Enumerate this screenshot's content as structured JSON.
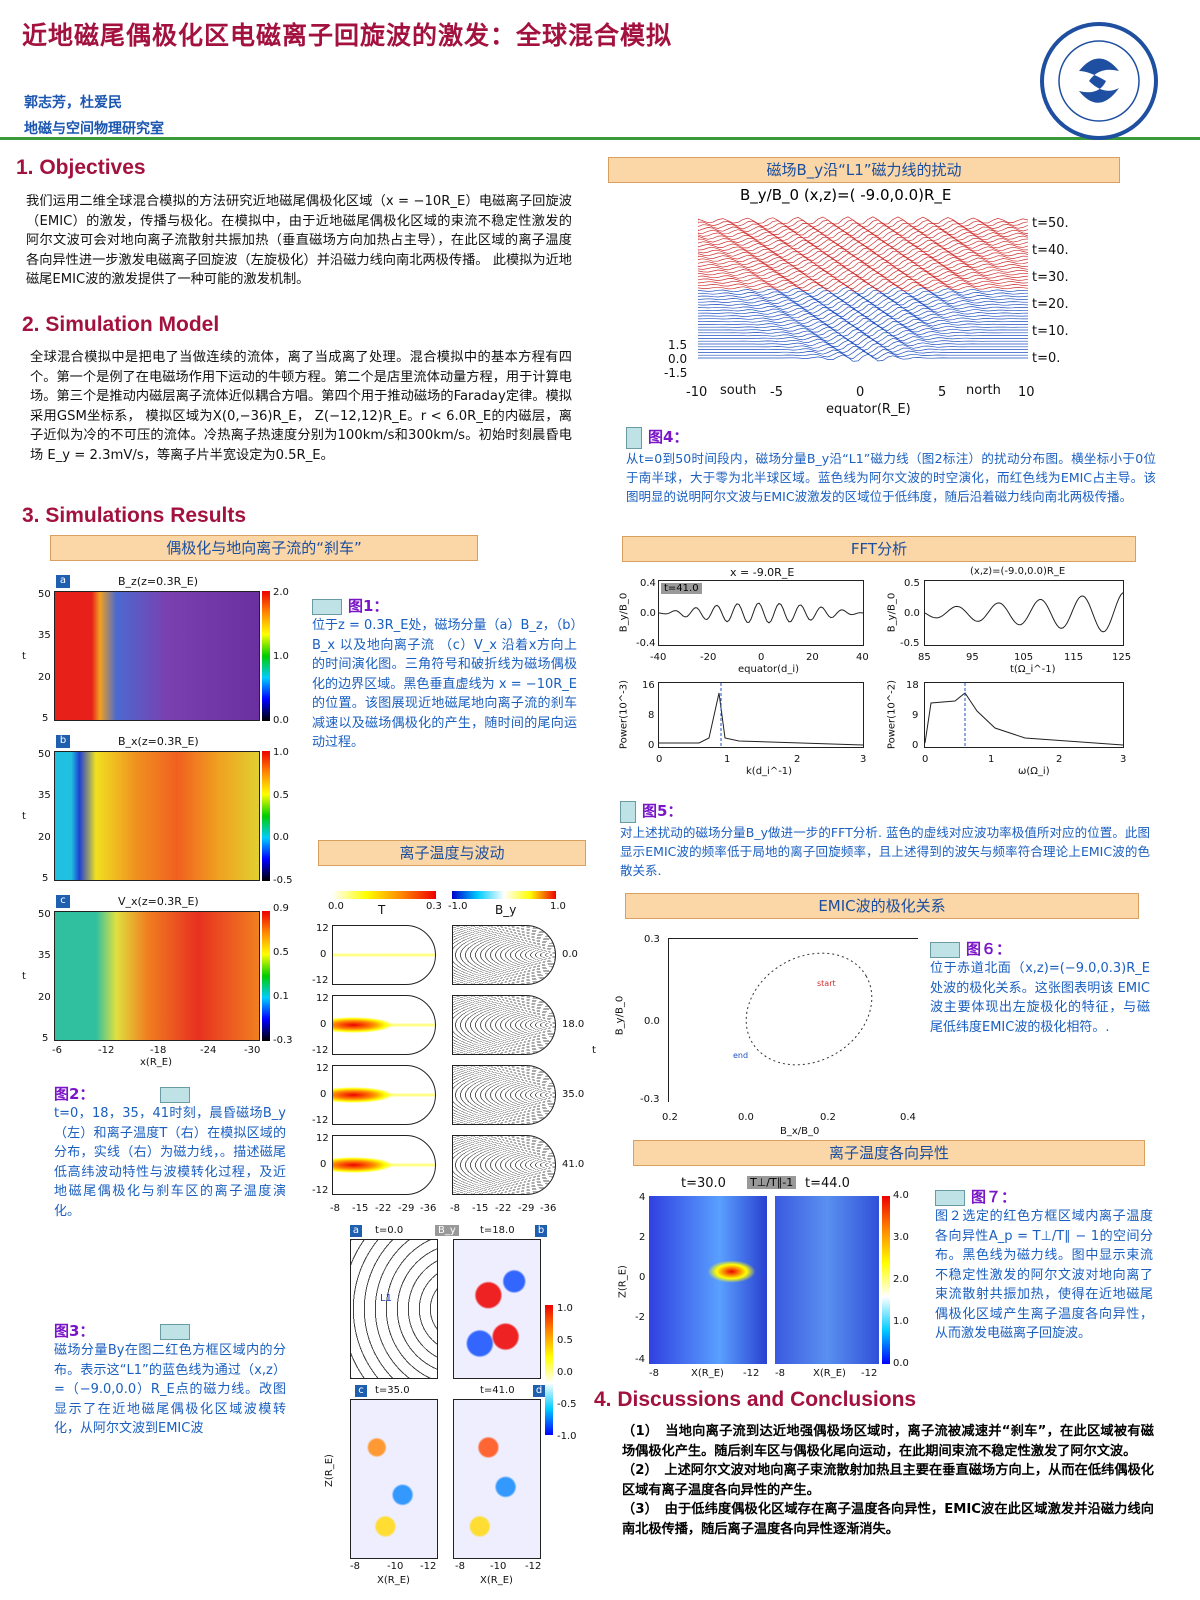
{
  "header": {
    "title": "近地磁尾偶极化区电磁离子回旋波的激发：全球混合模拟",
    "authors": "郭志芳，杜爱民",
    "institute": "地磁与空间物理研究室",
    "logo_text": "中国科学院地质与地球物理研究所 INSTITUTE OF GEOLOGY AND GEOPHYSICS CAS"
  },
  "colors": {
    "title": "#a3123f",
    "caption": "#1a5fc0",
    "band": "#fbd6a6",
    "rule": "#3a9a3a"
  },
  "objectives": {
    "heading": "1. Objectives",
    "text": "我们运用二维全球混合模拟的方法研究近地磁尾偶极化区域（x = −10R_E）电磁离子回旋波（EMIC）的激发，传播与极化。在模拟中，由于近地磁尾偶极化区域的束流不稳定性激发的阿尔文波可会对地向离子流散射共振加热（垂直磁场方向加热占主导），在此区域的离子温度各向异性进一步激发电磁离子回旋波（左旋极化）并沿磁力线向南北两极传播。 此模拟为近地磁尾EMIC波的激发提供了一种可能的激发机制。"
  },
  "model": {
    "heading": "2. Simulation Model",
    "text": "全球混合模拟中是把电了当做连续的流体，离了当成离了处理。混合模拟中的基本方程有四个。第一个是例了在电磁场作用下运动的牛顿方程。第二个是店里流体动量方程，用于计算电场。第三个是推动内磁层离子流体近似耦合方唱。第四个用于推动磁场的Faraday定律。模拟采用GSM坐标系， 模拟区域为X(0,−36)R_E， Z(−12,12)R_E。r < 6.0R_E的内磁层，离子近似为冷的不可压的流体。冷热离子热速度分别为100km/s和300km/s。初始时刻晨昏电场 E_y = 2.3mV/s，等离子片半宽设定为0.5R_E。"
  },
  "results": {
    "heading": "3. Simulations Results",
    "band1": "偶极化与地向离子流的“刹车”",
    "band2": "离子温度与波动"
  },
  "fig1": {
    "panels": [
      {
        "tag": "a",
        "title": "B_z(z=0.3R_E)",
        "cb": [
          "2.0",
          "1.0",
          "0.0"
        ]
      },
      {
        "tag": "b",
        "title": "B_x(z=0.3R_E)",
        "cb": [
          "1.0",
          "0.5",
          "0.0",
          "-0.5"
        ]
      },
      {
        "tag": "c",
        "title": "V_x(z=0.3R_E)",
        "cb": [
          "0.9",
          "0.5",
          "0.1",
          "-0.3"
        ]
      }
    ],
    "yticks": [
      "50",
      "35",
      "20",
      "5"
    ],
    "ylabel": "t",
    "xticks": [
      "-6",
      "-12",
      "-18",
      "-24",
      "-30"
    ],
    "xlabel": "x(R_E)",
    "caption_head": "图1：",
    "caption": "位于z = 0.3R_E处，磁场分量（a）B_z，（b）B_x 以及地向离子流 （c）V_x 沿着x方向上的时间演化图。三角符号和破折线为磁场偶极化的边界区域。黑色垂直虚线为 x = −10R_E 的位置。该图展现近地磁尾地向离子流的刹车减速以及磁场偶极化的产生，随时间的尾向运动过程。"
  },
  "fig2": {
    "caption_head": "图2：",
    "caption": "t=0，18，35，41时刻，晨昏磁场B_y（左）和离子温度T（右）在模拟区域的分布，实线（右）为磁力线，。描述磁尾低高纬波动特性与波模转化过程，及近地磁尾偶极化与刹车区的离子温度演化。",
    "cbT": {
      "label": "T",
      "min": "0.0",
      "max": "0.3"
    },
    "cbBy": {
      "label": "B_y",
      "min": "-1.0",
      "max": "1.0"
    },
    "times": [
      "0.0",
      "18.0",
      "35.0",
      "41.0"
    ],
    "time_axis": "t",
    "yticks": [
      "12",
      "0",
      "-12"
    ],
    "ylabel": "z(R_E)",
    "xticks": [
      "-8",
      "-15",
      "-22",
      "-29",
      "-36"
    ]
  },
  "fig3": {
    "caption_head": "图3：",
    "caption": "磁场分量By在图二红色方框区域内的分布。表示这“L1”的蓝色线为通过（x,z）=（−9.0,0.0）R_E点的磁力线。改图显示了在近地磁尾偶极化区域波模转化，从阿尔文波到EMIC波",
    "panels": [
      {
        "tag": "a",
        "time": "t=0.0"
      },
      {
        "tag": "b",
        "time": "t=18.0"
      },
      {
        "tag": "c",
        "time": "t=35.0"
      },
      {
        "tag": "d",
        "time": "t=41.0"
      }
    ],
    "badge": "B_y",
    "line_label": "L1",
    "cb": [
      "1.0",
      "0.5",
      "0.0",
      "-0.5",
      "-1.0"
    ],
    "yticks": [
      "4",
      "2",
      "0",
      "-2",
      "-4"
    ],
    "ylabel": "Z(R_E)",
    "xticks": [
      "-8",
      "-10",
      "-12"
    ],
    "xlabel": "X(R_E)"
  },
  "fig4": {
    "band": "磁场B_y沿“L1”磁力线的扰动",
    "title": "B_y/B_0 (x,z)=( -9.0,0.0)R_E",
    "times": [
      "t=50.",
      "t=40.",
      "t=30.",
      "t=20.",
      "t=10.",
      "t=0."
    ],
    "yticks": [
      "1.5",
      "0.0",
      "-1.5"
    ],
    "xticks": [
      "-10",
      "-5",
      "0",
      "5",
      "10"
    ],
    "south": "south",
    "north": "north",
    "xlabel": "equator(R_E)",
    "caption_head": "图4：",
    "caption": "从t=0到50时间段内，磁场分量B_y沿“L1”磁力线（图2标注）的扰动分布图。横坐标小于0位于南半球，大于零为北半球区域。蓝色线为阿尔文波的时空演化，而红色线为EMIC占主导。该图明显的说明阿尔文波与EMIC波激发的区域位于低纬度，随后沿着磁力线向南北两极传播。"
  },
  "fig5": {
    "band": "FFT分析",
    "tl": {
      "title": "x = -9.0R_E",
      "badge": "t=41.0",
      "ylabel": "B_y/B_0",
      "yticks": [
        "0.4",
        "0.0",
        "-0.4"
      ],
      "xticks": [
        "-40",
        "-20",
        "0",
        "20",
        "40"
      ],
      "xlabel": "equator(d_i)"
    },
    "tr": {
      "title": "(x,z)=(-9.0,0.0)R_E",
      "ylabel": "B_y/B_0",
      "yticks": [
        "0.5",
        "0.0",
        "-0.5"
      ],
      "xticks": [
        "85",
        "95",
        "105",
        "115",
        "125"
      ],
      "xlabel": "t(Ω_i^-1)"
    },
    "bl": {
      "ylabel": "Power(10^-3)",
      "yticks": [
        "16",
        "8",
        "0"
      ],
      "xticks": [
        "0",
        "1",
        "2",
        "3"
      ],
      "xlabel": "k(d_i^-1)"
    },
    "br": {
      "ylabel": "Power(10^-2)",
      "yticks": [
        "18",
        "9",
        "0"
      ],
      "xticks": [
        "0",
        "1",
        "2",
        "3"
      ],
      "xlabel": "ω(Ω_i)"
    },
    "caption_head": "图5：",
    "caption": "对上述扰动的磁场分量B_y做进一步的FFT分析. 蓝色的虚线对应波功率极值所对应的位置。此图显示EMIC波的频率低于局地的离子回旋频率，且上述得到的波矢与频率符合理论上EMIC波的色散关系."
  },
  "fig6": {
    "band": "EMIC波的极化关系",
    "yticks": [
      "0.3",
      "0.0",
      "-0.3"
    ],
    "xticks": [
      "0.2",
      "0.0",
      "0.2",
      "0.4"
    ],
    "ylabel": "B_y/B_0",
    "xlabel": "B_x/B_0",
    "start": "start",
    "end": "end",
    "caption_head": "图６：",
    "caption": "位于赤道北面（x,z)=(−9.0,0.3)R_E 处波的极化关系。这张图表明该 EMIC 波主要体现出左旋极化的特征，与磁尾低纬度EMIC波的极化相符。."
  },
  "fig7": {
    "band": "离子温度各向异性",
    "t1": "t=30.0",
    "badge": "T⊥/T∥-1",
    "t2": "t=44.0",
    "cb": [
      "4.0",
      "3.0",
      "2.0",
      "1.0",
      "0.0"
    ],
    "yticks": [
      "4",
      "2",
      "0",
      "-2",
      "-4"
    ],
    "ylabel": "Z(R_E)",
    "xticks": [
      "-8",
      "X(R_E)",
      "-12"
    ],
    "caption_head": "图７：",
    "caption": "图２选定的红色方框区域内离子温度各向异性A_p = T⊥/T∥ − 1的空间分布。黑色线为磁力线。图中显示束流不稳定性激发的阿尔文波对地向离了束流散射共振加热，使得在近地磁尾偶极化区域产生离子温度各向异性，从而激发电磁离子回旋波。"
  },
  "conclusions": {
    "heading": "4. Discussions and Conclusions",
    "items": [
      "（1）　当地向离子流到达近地强偶极场区域时，离子流被减速并“刹车”，在此区域被有磁场偶极化产生。随后刹车区与偶极化尾向运动，在此期间束流不稳定性激发了阿尔文波。",
      "（2）　上述阿尔文波对地向离子束流散射加热且主要在垂直磁场方向上，从而在低纬偶极化区域有离子温度各向异性的产生。",
      "（3）　由于低纬度偶极化区域存在离子温度各向异性，EMIC波在此区域激发并沿磁力线向南北极传播，随后离子温度各向异性逐渐消失。"
    ]
  }
}
